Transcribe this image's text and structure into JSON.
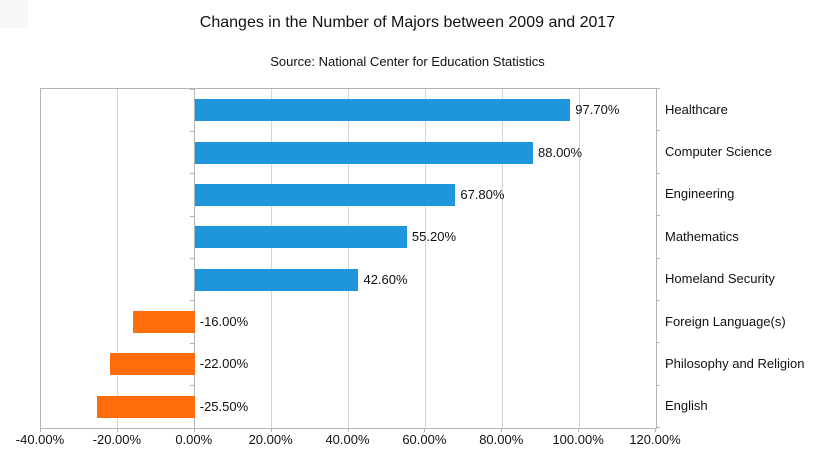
{
  "colors": {
    "positive_bar": "#1E96DC",
    "negative_bar": "#FF6D0A",
    "gridline": "#d6d6d6",
    "axis": "#b3b3b3",
    "text": "#111111",
    "background": "#ffffff"
  },
  "chart_data": {
    "type": "bar",
    "orientation": "horizontal",
    "title": "Changes in the Number of Majors between 2009 and 2017",
    "subtitle": "Source: National Center for Education Statistics",
    "categories": [
      "Healthcare",
      "Computer Science",
      "Engineering",
      "Mathematics",
      "Homeland Security",
      "Foreign Language(s)",
      "Philosophy and Religion",
      "English"
    ],
    "values": [
      97.7,
      88.0,
      67.8,
      55.2,
      42.6,
      -16.0,
      -22.0,
      -25.5
    ],
    "value_labels": [
      "97.70%",
      "88.00%",
      "67.80%",
      "55.20%",
      "42.60%",
      "-16.00%",
      "-22.00%",
      "-25.50%"
    ],
    "xlabel": "",
    "ylabel": "",
    "xlim": [
      -40,
      120
    ],
    "xtick_values": [
      -40,
      -20,
      0,
      20,
      40,
      60,
      80,
      100,
      120
    ],
    "xtick_labels": [
      "-40.00%",
      "-20.00%",
      "0.00%",
      "20.00%",
      "40.00%",
      "60.00%",
      "80.00%",
      "100.00%",
      "120.00%"
    ],
    "grid": true,
    "legend": "none",
    "category_labels_position": "right"
  }
}
